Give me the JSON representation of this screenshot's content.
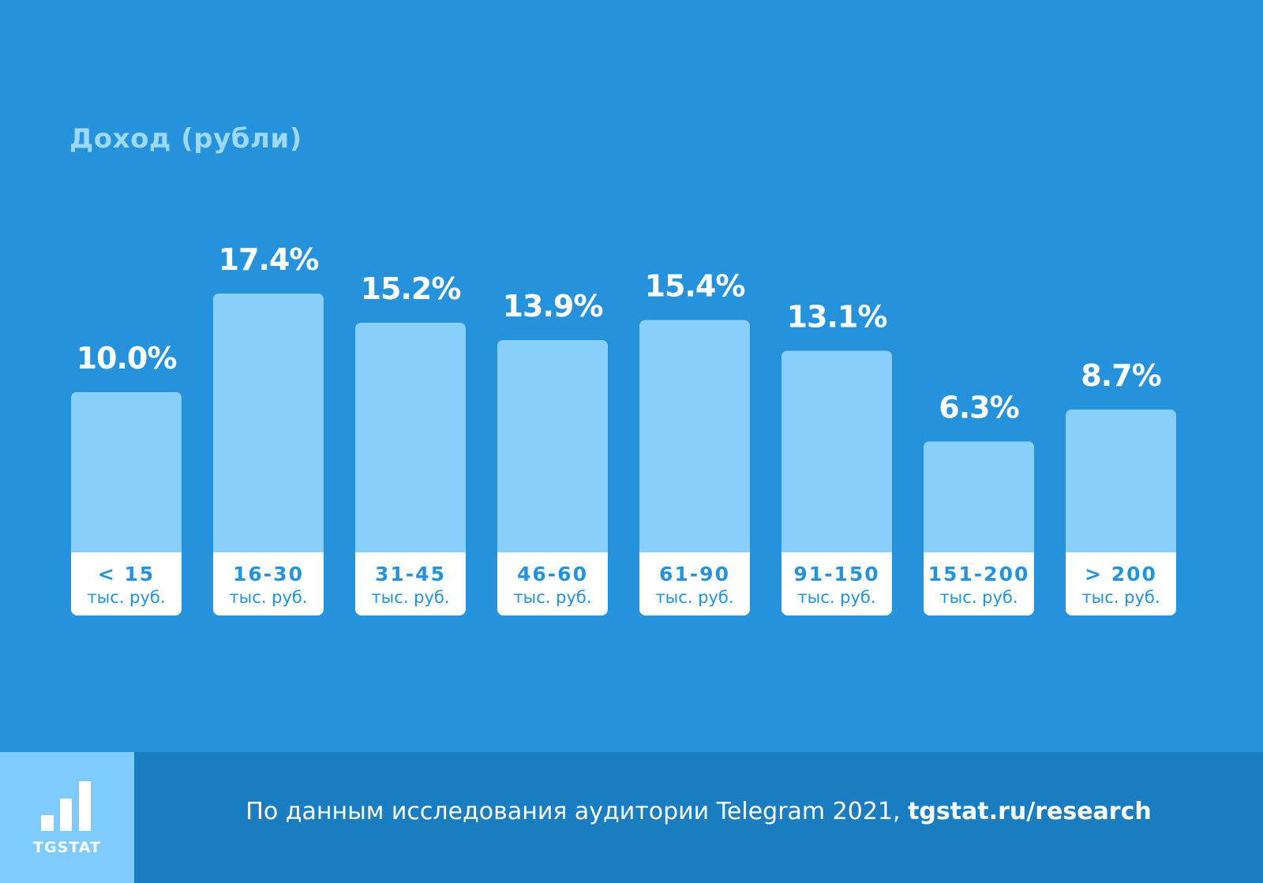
{
  "colors": {
    "background": "#2592db",
    "bar": "#88d0fb",
    "label_box": "#ffffff",
    "footer": "#1a7dc2",
    "logo_panel": "#7dcbff",
    "title": "#9dd8ff",
    "category_text": "#2592db"
  },
  "chart_data": {
    "type": "bar",
    "title": "Доход (рубли)",
    "categories": [
      "< 15",
      "16-30",
      "31-45",
      "46-60",
      "61-90",
      "91-150",
      "151-200",
      "> 200"
    ],
    "category_unit": "тыс. руб.",
    "values": [
      10.0,
      17.4,
      15.2,
      13.9,
      15.4,
      13.1,
      6.3,
      8.7
    ],
    "value_labels": [
      "10.0%",
      "17.4%",
      "15.2%",
      "13.9%",
      "15.4%",
      "13.1%",
      "6.3%",
      "8.7%"
    ],
    "grid": false
  },
  "footer": {
    "logo_text": "TGSTAT",
    "source_text": "По данным исследования аудитории Telegram 2021, ",
    "source_link": "tgstat.ru/research"
  }
}
